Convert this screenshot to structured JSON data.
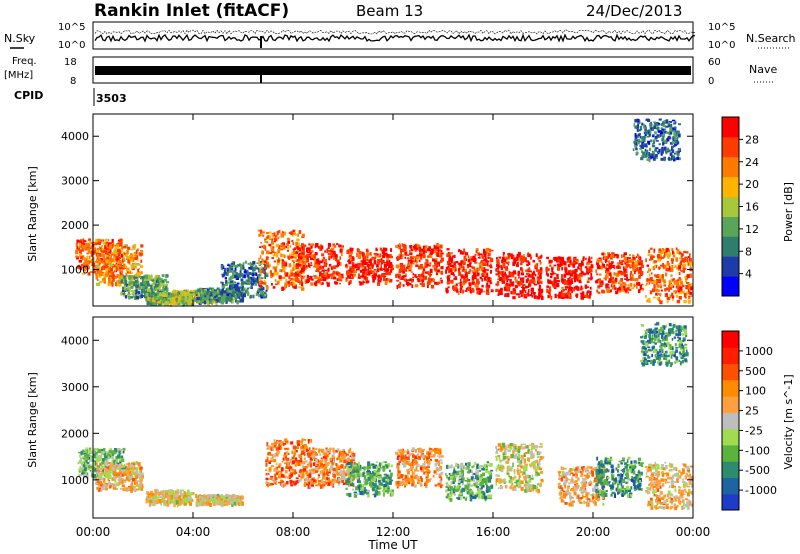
{
  "header": {
    "station": "Rankin Inlet (fitACF)",
    "beam": "Beam 13",
    "date": "24/Dec/2013"
  },
  "panels": {
    "nsky": {
      "left_label": "N.Sky",
      "right_label": "N.Search",
      "left_ticks": [
        "10^5",
        "10^0"
      ],
      "right_ticks": [
        "10^5",
        "10^0"
      ]
    },
    "freq": {
      "left_label_top": "Freq.",
      "left_label_unit": "[MHz]",
      "right_label": "Nave",
      "left_ticks": [
        "18",
        "8"
      ],
      "right_ticks": [
        "60",
        "0"
      ]
    },
    "cpid": {
      "label": "CPID",
      "value": "3503"
    }
  },
  "y_axis": {
    "label": "Slant Range [km]",
    "ticks": [
      "4000",
      "3000",
      "2000",
      "1000"
    ]
  },
  "x_axis": {
    "label": "Time UT",
    "ticks": [
      "00:00",
      "04:00",
      "08:00",
      "12:00",
      "16:00",
      "20:00",
      "00:00"
    ]
  },
  "colorbars": {
    "power": {
      "label": "Power [dB]",
      "ticks": [
        "28",
        "24",
        "20",
        "16",
        "12",
        "8",
        "4"
      ],
      "colors": [
        "#0000ff",
        "#1e3ca8",
        "#2e7d6d",
        "#5aa55a",
        "#a8c83c",
        "#ffb400",
        "#ff7a00",
        "#ff3c00",
        "#ff0000"
      ]
    },
    "velocity": {
      "label": "Velocity [m s^-1]",
      "ticks": [
        "1000",
        "500",
        "100",
        "25",
        "-25",
        "-100",
        "-500",
        "-1000"
      ],
      "colors": [
        "#1e3cc8",
        "#1e64a0",
        "#2e8c6e",
        "#5ab43c",
        "#a0dc50",
        "#bebebe",
        "#ffa040",
        "#ff8c00",
        "#ff5000",
        "#ff1e00",
        "#ff0000"
      ]
    }
  },
  "chart_data": [
    {
      "type": "heatmap",
      "name": "Power",
      "units": "dB",
      "x_range_hours": [
        0,
        24
      ],
      "y_range_km": [
        180,
        4500
      ],
      "color_range": [
        0,
        32
      ],
      "colormap": "power",
      "cells": [
        {
          "t": 0.2,
          "r_min": 900,
          "r_max": 1700,
          "value": 26
        },
        {
          "t": 1.0,
          "r_min": 700,
          "r_max": 1600,
          "value": 22
        },
        {
          "t": 2.0,
          "r_min": 400,
          "r_max": 900,
          "value": 12
        },
        {
          "t": 3.0,
          "r_min": 250,
          "r_max": 500,
          "value": 14
        },
        {
          "t": 4.0,
          "r_min": 280,
          "r_max": 550,
          "value": 16
        },
        {
          "t": 5.0,
          "r_min": 300,
          "r_max": 600,
          "value": 10
        },
        {
          "t": 6.0,
          "r_min": 400,
          "r_max": 1200,
          "value": 8
        },
        {
          "t": 7.5,
          "r_min": 600,
          "r_max": 1900,
          "value": 24
        },
        {
          "t": 9.0,
          "r_min": 700,
          "r_max": 1600,
          "value": 28
        },
        {
          "t": 11.0,
          "r_min": 700,
          "r_max": 1500,
          "value": 29
        },
        {
          "t": 13.0,
          "r_min": 650,
          "r_max": 1600,
          "value": 28
        },
        {
          "t": 15.0,
          "r_min": 500,
          "r_max": 1500,
          "value": 29
        },
        {
          "t": 17.0,
          "r_min": 400,
          "r_max": 1400,
          "value": 30
        },
        {
          "t": 19.0,
          "r_min": 400,
          "r_max": 1300,
          "value": 30
        },
        {
          "t": 21.0,
          "r_min": 500,
          "r_max": 1400,
          "value": 27
        },
        {
          "t": 23.0,
          "r_min": 300,
          "r_max": 1500,
          "value": 24
        },
        {
          "t": 22.5,
          "r_min": 3500,
          "r_max": 4400,
          "value": 8
        }
      ]
    },
    {
      "type": "heatmap",
      "name": "Velocity",
      "units": "m s^-1",
      "x_range_hours": [
        0,
        24
      ],
      "y_range_km": [
        180,
        4500
      ],
      "color_range": [
        -1000,
        1000
      ],
      "colormap": "velocity",
      "cells": [
        {
          "t": 0.3,
          "r_min": 1100,
          "r_max": 1700,
          "value": -300
        },
        {
          "t": 1.0,
          "r_min": 800,
          "r_max": 1400,
          "value": 150
        },
        {
          "t": 3.0,
          "r_min": 500,
          "r_max": 800,
          "value": 80
        },
        {
          "t": 5.0,
          "r_min": 500,
          "r_max": 700,
          "value": 60
        },
        {
          "t": 7.8,
          "r_min": 900,
          "r_max": 1900,
          "value": 400
        },
        {
          "t": 9.5,
          "r_min": 900,
          "r_max": 1700,
          "value": 350
        },
        {
          "t": 11.0,
          "r_min": 700,
          "r_max": 1400,
          "value": -400
        },
        {
          "t": 13.0,
          "r_min": 900,
          "r_max": 1700,
          "value": 300
        },
        {
          "t": 15.0,
          "r_min": 600,
          "r_max": 1400,
          "value": -350
        },
        {
          "t": 17.0,
          "r_min": 800,
          "r_max": 1800,
          "value": 0
        },
        {
          "t": 19.5,
          "r_min": 500,
          "r_max": 1300,
          "value": 200
        },
        {
          "t": 21.0,
          "r_min": 700,
          "r_max": 1500,
          "value": -500
        },
        {
          "t": 23.0,
          "r_min": 400,
          "r_max": 1400,
          "value": 150
        },
        {
          "t": 22.8,
          "r_min": 3500,
          "r_max": 4400,
          "value": -500
        }
      ]
    }
  ]
}
